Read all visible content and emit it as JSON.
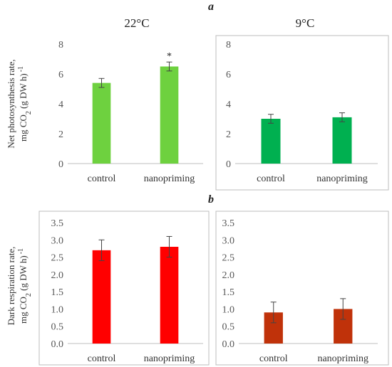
{
  "figure": {
    "panel_labels": [
      "a",
      "b"
    ],
    "temperatures": [
      "22°C",
      "9°C"
    ],
    "ylabels": {
      "photo": {
        "line1": "Net photosynthesis rate,",
        "line2_pre": "mg CO",
        "line2_sub": "2",
        "line2_post": " (g DW h)",
        "line2_sup": "-1"
      },
      "resp": {
        "line1": "Dark respiration rate,",
        "line2_pre": "mg CO",
        "line2_sub": "2",
        "line2_post": " (g DW h)",
        "line2_sup": "-1"
      }
    }
  },
  "chart_data": [
    {
      "type": "bar",
      "panel": "a",
      "title": "22°C",
      "categories": [
        "control",
        "nanopriming"
      ],
      "values": [
        5.4,
        6.5
      ],
      "errors": [
        0.3,
        0.3
      ],
      "annotations": [
        "",
        "*"
      ],
      "color": "#6ed13f",
      "ylim": [
        0,
        8
      ],
      "yticks": [
        0,
        2,
        4,
        6,
        8
      ],
      "ytick_labels": [
        "0",
        "2",
        "4",
        "6",
        "8"
      ],
      "framed": false
    },
    {
      "type": "bar",
      "panel": "a",
      "title": "9°C",
      "categories": [
        "control",
        "nanopriming"
      ],
      "values": [
        3.0,
        3.1
      ],
      "errors": [
        0.3,
        0.3
      ],
      "annotations": [
        "",
        ""
      ],
      "color": "#00b050",
      "ylim": [
        0,
        8
      ],
      "yticks": [
        0,
        2,
        4,
        6,
        8
      ],
      "ytick_labels": [
        "0",
        "2",
        "4",
        "6",
        "8"
      ],
      "framed": true
    },
    {
      "type": "bar",
      "panel": "b",
      "categories": [
        "control",
        "nanopriming"
      ],
      "values": [
        2.7,
        2.8
      ],
      "errors": [
        0.3,
        0.3
      ],
      "annotations": [
        "",
        ""
      ],
      "color": "#ff0000",
      "ylim": [
        0,
        3.5
      ],
      "yticks": [
        0,
        0.5,
        1,
        1.5,
        2,
        2.5,
        3,
        3.5
      ],
      "ytick_labels": [
        "0.0",
        "0.5",
        "1.0",
        "1.5",
        "2.0",
        "2.5",
        "3.0",
        "3.5"
      ],
      "framed": true
    },
    {
      "type": "bar",
      "panel": "b",
      "categories": [
        "control",
        "nanopriming"
      ],
      "values": [
        0.9,
        1.0
      ],
      "errors": [
        0.3,
        0.3
      ],
      "annotations": [
        "",
        ""
      ],
      "color": "#c0320a",
      "ylim": [
        0,
        3.5
      ],
      "yticks": [
        0,
        0.5,
        1,
        1.5,
        2,
        2.5,
        3,
        3.5
      ],
      "ytick_labels": [
        "0.0",
        "0.5",
        "1.0",
        "1.5",
        "2.0",
        "2.5",
        "3.0",
        "3.5"
      ],
      "framed": true
    }
  ]
}
